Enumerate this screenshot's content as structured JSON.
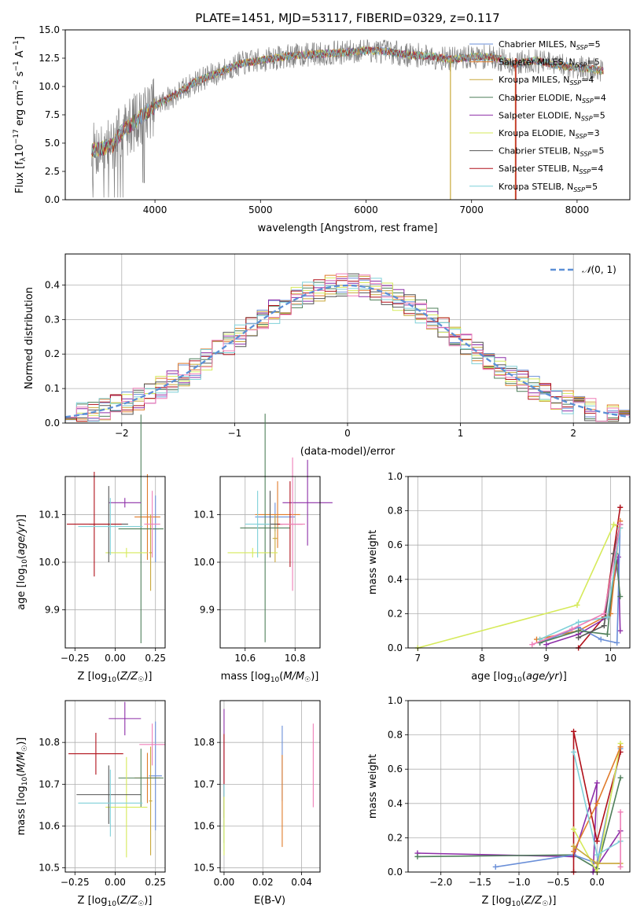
{
  "colors": {
    "chabrier_miles": "#6a8fd8",
    "salpeter_miles": "#e07b2a",
    "kroupa_miles": "#c9a83a",
    "chabrier_elodie": "#4f7f5a",
    "salpeter_elodie": "#8e2fa8",
    "kroupa_elodie": "#d6ea5a",
    "chabrier_stelib": "#555555",
    "salpeter_stelib": "#b0101a",
    "kroupa_stelib": "#7fd0d8",
    "pink": "#ef7fb8",
    "data": "#808080",
    "gauss": "#5b8fd6"
  },
  "chart_data": [
    {
      "id": "spectrum",
      "type": "line",
      "title": "PLATE=1451, MJD=53117, FIBERID=0329, z=0.117",
      "xlabel": "wavelength [Angstrom, rest frame]",
      "ylabel": "Flux [f$_\\lambda$10$^{-17}$ erg cm$^{-2}$ s$^{-1}$ A$^{-1}$]",
      "xlim": [
        3150,
        8500
      ],
      "ylim": [
        0,
        15
      ],
      "xticks": [
        "4000",
        "5000",
        "6000",
        "7000",
        "8000"
      ],
      "yticks": [
        "0.0",
        "2.5",
        "5.0",
        "7.5",
        "10.0",
        "12.5",
        "15.0"
      ],
      "legend": [
        "Chabrier MILES, N$_{SSP}$=5",
        "Salpeter MILES, N$_{SSP}$=5",
        "Kroupa MILES, N$_{SSP}$=4",
        "Chabrier ELODIE, N$_{SSP}$=4",
        "Salpeter ELODIE, N$_{SSP}$=5",
        "Kroupa ELODIE, N$_{SSP}$=3",
        "Chabrier STELIB, N$_{SSP}$=5",
        "Salpeter STELIB, N$_{SSP}$=4",
        "Kroupa STELIB, N$_{SSP}$=5"
      ],
      "legend_placement": "right",
      "continuum": [
        [
          3400,
          4.3
        ],
        [
          3600,
          4.8
        ],
        [
          3700,
          6.2
        ],
        [
          3800,
          6.8
        ],
        [
          3900,
          7.6
        ],
        [
          4000,
          8.3
        ],
        [
          4200,
          9.3
        ],
        [
          4400,
          10.5
        ],
        [
          4600,
          11.2
        ],
        [
          4800,
          12.0
        ],
        [
          5000,
          12.3
        ],
        [
          5200,
          12.6
        ],
        [
          5400,
          12.8
        ],
        [
          5600,
          12.9
        ],
        [
          5800,
          13.0
        ],
        [
          6000,
          13.2
        ],
        [
          6200,
          13.1
        ],
        [
          6400,
          12.8
        ],
        [
          6600,
          12.7
        ],
        [
          6800,
          12.4
        ],
        [
          7000,
          12.6
        ],
        [
          7200,
          12.6
        ],
        [
          7400,
          12.0
        ],
        [
          7600,
          12.3
        ],
        [
          7800,
          11.9
        ],
        [
          8000,
          11.7
        ],
        [
          8250,
          11.4
        ]
      ]
    },
    {
      "id": "residuals",
      "type": "line",
      "xlabel": "(data-model)/error",
      "ylabel": "Normed distribution",
      "xlim": [
        -2.5,
        2.5
      ],
      "ylim": [
        0,
        0.49
      ],
      "xticks": [
        "−2",
        "−1",
        "0",
        "1",
        "2"
      ],
      "yticks": [
        "0.0",
        "0.1",
        "0.2",
        "0.3",
        "0.4"
      ],
      "grid": true,
      "legend": [
        "$\\mathcal{N}(0,1)$"
      ],
      "legend_placement": "top-right",
      "bin_width": 0.1,
      "bin_start": -2.5
    },
    {
      "id": "age_vs_Z",
      "type": "scatter",
      "xlabel": "Z [log$_{10}$($Z/Z_\\odot$)]",
      "ylabel": "age  [log$_{10}$($age/yr$)]",
      "xlim": [
        -0.31,
        0.31
      ],
      "ylim": [
        9.82,
        10.18
      ],
      "xticks": [
        "−0.25",
        "0.00",
        "0.25"
      ],
      "yticks": [
        "9.9",
        "10.0",
        "10.1"
      ],
      "grid": true,
      "points": [
        {
          "x": 0.25,
          "xerr": 0.02,
          "y": 10.07,
          "yerr": 0.07,
          "c": "chabrier_miles"
        },
        {
          "x": 0.2,
          "xerr": 0.08,
          "y": 10.095,
          "yerr": 0.09,
          "c": "salpeter_miles"
        },
        {
          "x": 0.22,
          "xerr": 0.01,
          "y": 10.02,
          "yerr": 0.08,
          "c": "kroupa_miles"
        },
        {
          "x": 0.16,
          "xerr": 0.14,
          "y": 10.07,
          "yerr": 0.24,
          "c": "chabrier_elodie"
        },
        {
          "x": 0.06,
          "xerr": 0.1,
          "y": 10.125,
          "yerr": 0.01,
          "c": "salpeter_elodie"
        },
        {
          "x": 0.07,
          "xerr": 0.13,
          "y": 10.02,
          "yerr": 0.01,
          "c": "kroupa_elodie"
        },
        {
          "x": -0.04,
          "xerr": 0.12,
          "y": 10.08,
          "yerr": 0.08,
          "c": "chabrier_stelib"
        },
        {
          "x": -0.13,
          "xerr": 0.17,
          "y": 10.08,
          "yerr": 0.11,
          "c": "salpeter_stelib"
        },
        {
          "x": -0.03,
          "xerr": 0.2,
          "y": 10.075,
          "yerr": 0.06,
          "c": "kroupa_stelib"
        },
        {
          "x": 0.23,
          "xerr": 0.05,
          "y": 10.08,
          "yerr": 0.07,
          "c": "pink"
        }
      ]
    },
    {
      "id": "age_vs_mass",
      "type": "scatter",
      "xlabel": "mass [log$_{10}$($M/M_\\odot$)]",
      "xlim": [
        10.5,
        10.9
      ],
      "ylim": [
        9.82,
        10.18
      ],
      "xticks": [
        "10.6",
        "10.8"
      ],
      "yticks": [
        "9.9",
        "10.0",
        "10.1"
      ],
      "grid": true,
      "points": [
        {
          "x": 10.72,
          "xerr": 0.08,
          "y": 10.095,
          "yerr": 0.03,
          "c": "chabrier_miles"
        },
        {
          "x": 10.73,
          "xerr": 0.09,
          "y": 10.1,
          "yerr": 0.07,
          "c": "salpeter_miles"
        },
        {
          "x": 10.72,
          "xerr": 0.01,
          "y": 10.05,
          "yerr": 0.05,
          "c": "kroupa_miles"
        },
        {
          "x": 10.68,
          "xerr": 0.1,
          "y": 10.072,
          "yerr": 0.24,
          "c": "chabrier_elodie"
        },
        {
          "x": 10.85,
          "xerr": 0.1,
          "y": 10.125,
          "yerr": 0.09,
          "c": "salpeter_elodie"
        },
        {
          "x": 10.63,
          "xerr": 0.1,
          "y": 10.02,
          "yerr": 0.01,
          "c": "kroupa_elodie"
        },
        {
          "x": 10.7,
          "xerr": 0.05,
          "y": 10.08,
          "yerr": 0.07,
          "c": "chabrier_stelib"
        },
        {
          "x": 10.78,
          "xerr": 0.05,
          "y": 10.08,
          "yerr": 0.09,
          "c": "salpeter_stelib"
        },
        {
          "x": 10.65,
          "xerr": 0.05,
          "y": 10.08,
          "yerr": 0.07,
          "c": "kroupa_stelib"
        },
        {
          "x": 10.79,
          "xerr": 0.05,
          "y": 10.08,
          "yerr": 0.14,
          "c": "pink"
        }
      ]
    },
    {
      "id": "mass_weight_vs_age",
      "type": "line",
      "xlabel": "age  [log$_{10}$($age/yr$)]",
      "ylabel": "mass weight",
      "xlim": [
        6.85,
        10.3
      ],
      "ylim": [
        0,
        1
      ],
      "xticks": [
        "7",
        "8",
        "9",
        "10"
      ],
      "yticks": [
        "0.0",
        "0.2",
        "0.4",
        "0.6",
        "0.8",
        "1.0"
      ],
      "grid": true,
      "series": [
        {
          "c": "kroupa_elodie",
          "points": [
            [
              7.0,
              0.0
            ],
            [
              9.48,
              0.25
            ],
            [
              10.05,
              0.72
            ],
            [
              10.15,
              0.7
            ]
          ]
        },
        {
          "c": "salpeter_stelib",
          "points": [
            [
              9.5,
              0.0
            ],
            [
              9.9,
              0.18
            ],
            [
              10.15,
              0.82
            ]
          ]
        },
        {
          "c": "salpeter_elodie",
          "points": [
            [
              9.0,
              0.02
            ],
            [
              9.5,
              0.08
            ],
            [
              9.95,
              0.18
            ],
            [
              10.12,
              0.53
            ],
            [
              10.15,
              0.1
            ]
          ]
        },
        {
          "c": "salpeter_miles",
          "points": [
            [
              8.85,
              0.05
            ],
            [
              9.5,
              0.1
            ],
            [
              10.0,
              0.2
            ],
            [
              10.15,
              0.74
            ]
          ]
        },
        {
          "c": "chabrier_miles",
          "points": [
            [
              8.9,
              0.03
            ],
            [
              9.5,
              0.12
            ],
            [
              9.85,
              0.05
            ],
            [
              10.1,
              0.03
            ],
            [
              10.15,
              0.72
            ]
          ]
        },
        {
          "c": "chabrier_elodie",
          "points": [
            [
              8.9,
              0.03
            ],
            [
              9.5,
              0.1
            ],
            [
              9.95,
              0.08
            ],
            [
              10.08,
              0.55
            ],
            [
              10.15,
              0.3
            ]
          ]
        },
        {
          "c": "chabrier_stelib",
          "points": [
            [
              9.5,
              0.06
            ],
            [
              9.9,
              0.13
            ],
            [
              10.05,
              0.55
            ],
            [
              10.15,
              0.72
            ]
          ]
        },
        {
          "c": "kroupa_stelib",
          "points": [
            [
              8.9,
              0.05
            ],
            [
              9.5,
              0.15
            ],
            [
              9.95,
              0.18
            ],
            [
              10.15,
              0.7
            ]
          ]
        },
        {
          "c": "pink",
          "points": [
            [
              8.78,
              0.02
            ],
            [
              9.4,
              0.11
            ],
            [
              9.9,
              0.2
            ],
            [
              10.15,
              0.72
            ]
          ]
        }
      ]
    },
    {
      "id": "mass_vs_Z",
      "type": "scatter",
      "xlabel": "Z [log$_{10}$($Z/Z_\\odot$)]",
      "ylabel": "mass [log$_{10}$($M/M_\\odot$)]",
      "xlim": [
        -0.31,
        0.31
      ],
      "ylim": [
        10.49,
        10.9
      ],
      "xticks": [
        "−0.25",
        "0.00",
        "0.25"
      ],
      "yticks": [
        "10.5",
        "10.6",
        "10.7",
        "10.8"
      ],
      "grid": true,
      "points": [
        {
          "x": 0.25,
          "xerr": 0.04,
          "y": 10.72,
          "yerr": 0.13,
          "c": "chabrier_miles"
        },
        {
          "x": 0.2,
          "xerr": 0.08,
          "y": 10.715,
          "yerr": 0.06,
          "c": "salpeter_miles"
        },
        {
          "x": 0.22,
          "xerr": 0.01,
          "y": 10.66,
          "yerr": 0.13,
          "c": "kroupa_miles"
        },
        {
          "x": 0.16,
          "xerr": 0.14,
          "y": 10.715,
          "yerr": 0.07,
          "c": "chabrier_elodie"
        },
        {
          "x": 0.06,
          "xerr": 0.1,
          "y": 10.857,
          "yerr": 0.04,
          "c": "salpeter_elodie"
        },
        {
          "x": 0.07,
          "xerr": 0.13,
          "y": 10.645,
          "yerr": 0.12,
          "c": "kroupa_elodie"
        },
        {
          "x": -0.04,
          "xerr": 0.2,
          "y": 10.675,
          "yerr": 0.07,
          "c": "chabrier_stelib"
        },
        {
          "x": -0.12,
          "xerr": 0.17,
          "y": 10.773,
          "yerr": 0.05,
          "c": "salpeter_stelib"
        },
        {
          "x": -0.03,
          "xerr": 0.2,
          "y": 10.655,
          "yerr": 0.08,
          "c": "kroupa_stelib"
        },
        {
          "x": 0.23,
          "xerr": 0.08,
          "y": 10.795,
          "yerr": 0.05,
          "c": "pink"
        }
      ]
    },
    {
      "id": "mass_vs_EBV",
      "type": "scatter",
      "xlabel": "E(B-V)",
      "xlim": [
        -0.002,
        0.0495
      ],
      "ylim": [
        10.49,
        10.9
      ],
      "xticks": [
        "0.00",
        "0.02",
        "0.04"
      ],
      "yticks": [
        "10.5",
        "10.6",
        "10.7",
        "10.8"
      ],
      "grid": true,
      "points": [
        {
          "x": 0.0,
          "y": 10.74,
          "yerr": 0.14,
          "c": "salpeter_elodie"
        },
        {
          "x": 0.0,
          "y": 10.72,
          "yerr": 0.1,
          "c": "salpeter_stelib"
        },
        {
          "x": 0.0,
          "y": 10.63,
          "yerr": 0.07,
          "c": "chabrier_elodie"
        },
        {
          "x": 0.0,
          "y": 10.62,
          "yerr": 0.08,
          "c": "kroupa_stelib"
        },
        {
          "x": 0.0,
          "y": 10.6,
          "yerr": 0.07,
          "c": "kroupa_elodie"
        },
        {
          "x": 0.03,
          "y": 10.75,
          "yerr": 0.09,
          "c": "chabrier_miles"
        },
        {
          "x": 0.03,
          "y": 10.66,
          "yerr": 0.11,
          "c": "salpeter_miles"
        },
        {
          "x": 0.046,
          "y": 10.745,
          "yerr": 0.1,
          "c": "pink"
        }
      ]
    },
    {
      "id": "mass_weight_vs_Z",
      "type": "line",
      "xlabel": "Z [log$_{10}$($Z/Z_\\odot$)]",
      "ylabel": "mass weight",
      "xlim": [
        -2.42,
        0.42
      ],
      "ylim": [
        0,
        1
      ],
      "xticks": [
        "−2.0",
        "−1.5",
        "−1.0",
        "−0.5",
        "0.0"
      ],
      "yticks": [
        "0.0",
        "0.2",
        "0.4",
        "0.6",
        "0.8",
        "1.0"
      ],
      "grid": true,
      "series": [
        {
          "c": "salpeter_elodie",
          "points": [
            [
              -2.3,
              0.11
            ],
            [
              -0.3,
              0.09
            ],
            [
              0.0,
              0.52
            ],
            [
              -0.05,
              0.0
            ],
            [
              0.3,
              0.24
            ]
          ]
        },
        {
          "c": "chabrier_elodie",
          "points": [
            [
              -2.3,
              0.09
            ],
            [
              -0.3,
              0.1
            ],
            [
              0.0,
              0.02
            ],
            [
              0.3,
              0.55
            ]
          ]
        },
        {
          "c": "chabrier_miles",
          "points": [
            [
              -1.3,
              0.03
            ],
            [
              -0.3,
              0.1
            ],
            [
              0.0,
              0.05
            ],
            [
              0.3,
              0.72
            ]
          ]
        },
        {
          "c": "salpeter_stelib",
          "points": [
            [
              -0.3,
              0.0
            ],
            [
              -0.3,
              0.82
            ],
            [
              0.0,
              0.18
            ],
            [
              0.3,
              0.7
            ]
          ]
        },
        {
          "c": "kroupa_elodie",
          "points": [
            [
              -0.3,
              0.25
            ],
            [
              0.0,
              0.0
            ],
            [
              0.3,
              0.75
            ]
          ]
        },
        {
          "c": "salpeter_miles",
          "points": [
            [
              -0.3,
              0.12
            ],
            [
              0.0,
              0.4
            ],
            [
              0.3,
              0.73
            ]
          ]
        },
        {
          "c": "kroupa_stelib",
          "points": [
            [
              -0.3,
              0.7
            ],
            [
              0.0,
              0.1
            ],
            [
              0.3,
              0.18
            ]
          ]
        },
        {
          "c": "kroupa_miles",
          "points": [
            [
              -0.3,
              0.15
            ],
            [
              0.0,
              0.05
            ],
            [
              0.3,
              0.05
            ]
          ]
        },
        {
          "c": "pink",
          "points": [
            [
              0.3,
              0.35
            ],
            [
              0.3,
              0.03
            ]
          ]
        }
      ]
    }
  ]
}
